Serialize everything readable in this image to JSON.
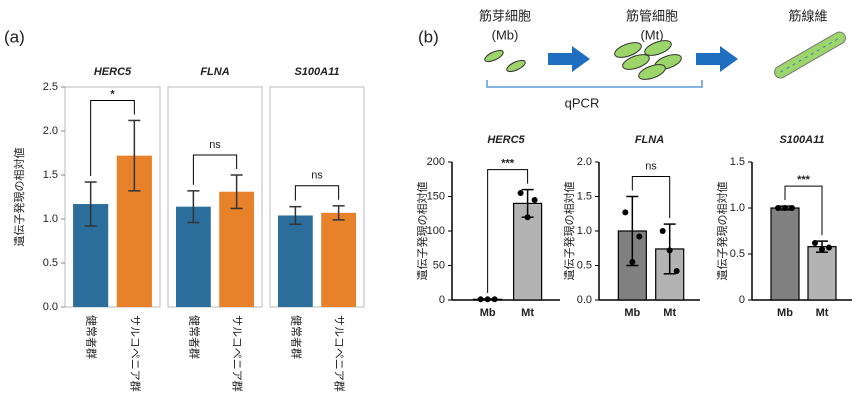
{
  "panel_labels": [
    "(a)",
    "(b)"
  ],
  "diagram": {
    "stages": [
      {
        "name": "筋芽細胞",
        "abbr": "(Mb)"
      },
      {
        "name": "筋管細胞",
        "abbr": "(Mt)"
      },
      {
        "name": "筋線維"
      }
    ],
    "method": "qPCR"
  },
  "chart_data": [
    {
      "type": "bar",
      "title": "HERC5",
      "ylabel": "遺伝子発現の相対値",
      "categories": [
        "健常者群",
        "サルコペニア群"
      ],
      "values": [
        1.17,
        1.72
      ],
      "errors": [
        0.25,
        0.4
      ],
      "colors": [
        "#2c6e9b",
        "#e8822a"
      ],
      "ylim": [
        0,
        2.5
      ],
      "yticks": [
        {
          "value": 0,
          "label": "0.0"
        },
        0.5,
        {
          "value": 1,
          "label": "1.0"
        },
        1.5,
        {
          "value": 2,
          "label": "2.0"
        },
        2.5
      ],
      "annotation": "*"
    },
    {
      "type": "bar",
      "title": "FLNA",
      "categories": [
        "健常者群",
        "サルコペニア群"
      ],
      "values": [
        1.14,
        1.31
      ],
      "errors": [
        0.18,
        0.19
      ],
      "colors": [
        "#2c6e9b",
        "#e8822a"
      ],
      "ylim": [
        0,
        2.5
      ],
      "annotation": "ns"
    },
    {
      "type": "bar",
      "title": "S100A11",
      "categories": [
        "健常者群",
        "サルコペニア群"
      ],
      "values": [
        1.04,
        1.07
      ],
      "errors": [
        0.1,
        0.08
      ],
      "colors": [
        "#2c6e9b",
        "#e8822a"
      ],
      "ylim": [
        0,
        2.5
      ],
      "annotation": "ns"
    },
    {
      "type": "bar",
      "title": "HERC5",
      "ylabel": "遺伝子発現の相対値",
      "categories": [
        "Mb",
        "Mt"
      ],
      "values": [
        1,
        140
      ],
      "errors": [
        0.5,
        20
      ],
      "points": [
        [
          1,
          1,
          1
        ],
        [
          155,
          120,
          145
        ]
      ],
      "colors": [
        "#808080",
        "#b3b3b3"
      ],
      "ylim": [
        0,
        200
      ],
      "yticks": [
        0,
        50,
        100,
        150,
        200
      ],
      "annotation": "***"
    },
    {
      "type": "bar",
      "title": "FLNA",
      "ylabel": "遺伝子発現の相対値",
      "categories": [
        "Mb",
        "Mt"
      ],
      "values": [
        1.0,
        0.74
      ],
      "errors": [
        0.5,
        0.36
      ],
      "points": [
        [
          1.27,
          0.55,
          0.92
        ],
        [
          1.0,
          0.72,
          0.42
        ]
      ],
      "colors": [
        "#808080",
        "#b3b3b3"
      ],
      "ylim": [
        0,
        2
      ],
      "yticks": [
        {
          "value": 0,
          "label": "0.0"
        },
        0.5,
        {
          "value": 1,
          "label": "1.0"
        },
        1.5,
        {
          "value": 2,
          "label": "2.0"
        }
      ],
      "annotation": "ns"
    },
    {
      "type": "bar",
      "title": "S100A11",
      "ylabel": "遺伝子発現の相対値",
      "categories": [
        "Mb",
        "Mt"
      ],
      "values": [
        1.0,
        0.58
      ],
      "errors": [
        0.02,
        0.06
      ],
      "points": [
        [
          1.0,
          1.0,
          1.0
        ],
        [
          0.62,
          0.55,
          0.57
        ]
      ],
      "colors": [
        "#808080",
        "#b3b3b3"
      ],
      "ylim": [
        0,
        1.5
      ],
      "yticks": [
        0,
        0.5,
        {
          "value": 1,
          "label": "1.0"
        },
        1.5
      ],
      "annotation": "***"
    }
  ]
}
